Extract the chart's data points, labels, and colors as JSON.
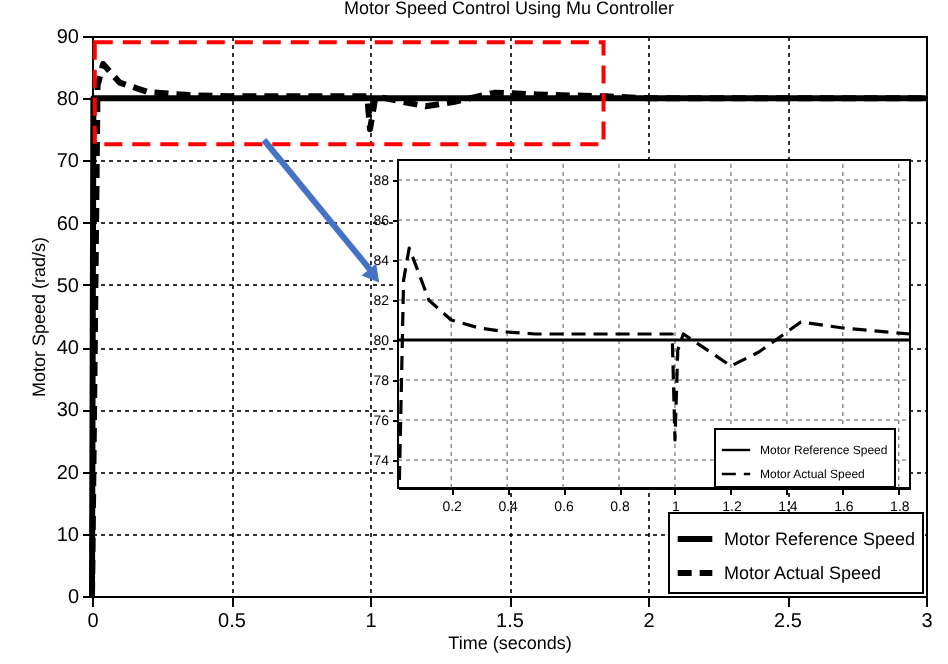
{
  "chart_data": [
    {
      "type": "line",
      "title": "Motor Speed Control Using Mu Controller",
      "xlabel": "Time (seconds)",
      "ylabel": "Motor Speed (rad/s)",
      "xlim": [
        0,
        3
      ],
      "ylim": [
        0,
        90
      ],
      "xticks": [
        0,
        0.5,
        1,
        1.5,
        2,
        2.5,
        3
      ],
      "yticks": [
        0,
        10,
        20,
        30,
        40,
        50,
        60,
        70,
        80,
        90
      ],
      "grid": true,
      "legend": "bottom right",
      "series": [
        {
          "name": "Motor Reference Speed",
          "color": "#000000",
          "line_style": "solid",
          "x": [
            0,
            0.005,
            3
          ],
          "values": [
            0,
            80,
            80
          ]
        },
        {
          "name": "Motor Actual Speed",
          "color": "#000000",
          "line_style": "dashed",
          "x": [
            0,
            0.01,
            0.02,
            0.04,
            0.1,
            0.2,
            0.35,
            0.5,
            0.99,
            1.0,
            1.02,
            1.2,
            1.3,
            1.45,
            1.6,
            1.85,
            2,
            3
          ],
          "values": [
            0,
            40,
            82,
            85.5,
            82.5,
            81,
            80.5,
            80.3,
            80.3,
            75,
            80.3,
            78.7,
            79.4,
            80.9,
            80.6,
            80.3,
            80,
            80
          ]
        }
      ]
    },
    {
      "type": "line",
      "xlim": [
        0.01,
        1.84
      ],
      "ylim": [
        72.6,
        89
      ],
      "xticks": [
        0.2,
        0.4,
        0.6,
        0.8,
        1,
        1.2,
        1.4,
        1.6,
        1.8
      ],
      "yticks": [
        74,
        76,
        78,
        80,
        82,
        84,
        86,
        88
      ],
      "grid": true,
      "legend": "bottom right",
      "series": [
        {
          "name": "Motor Reference Speed",
          "color": "#000000",
          "line_style": "solid",
          "x": [
            0.01,
            1.84
          ],
          "values": [
            80,
            80
          ]
        },
        {
          "name": "Motor Actual Speed",
          "color": "#000000",
          "line_style": "dashed",
          "x": [
            0.015,
            0.03,
            0.05,
            0.08,
            0.12,
            0.2,
            0.3,
            0.4,
            0.5,
            0.99,
            1.0,
            1.01,
            1.03,
            1.2,
            1.3,
            1.45,
            1.6,
            1.84
          ],
          "values": [
            73,
            83,
            84.6,
            83.5,
            82,
            81,
            80.6,
            80.4,
            80.3,
            80.3,
            75,
            79.5,
            80.3,
            78.7,
            79.4,
            80.9,
            80.6,
            80.3
          ]
        }
      ]
    }
  ]
}
